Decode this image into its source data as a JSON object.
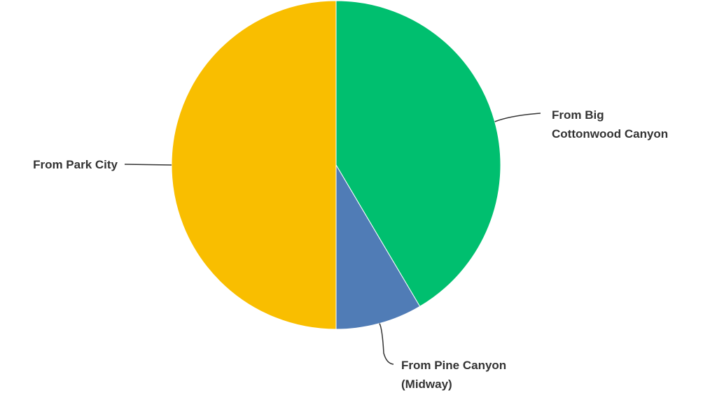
{
  "chart_data": {
    "type": "pie",
    "slices": [
      {
        "label_lines": [
          "From Big",
          "Cottonwood Canyon"
        ],
        "value": 41.5,
        "color": "#00bf6f"
      },
      {
        "label_lines": [
          "From Pine Canyon",
          "(Midway)"
        ],
        "value": 8.5,
        "color": "#507cb6"
      },
      {
        "label_lines": [
          "From Park City"
        ],
        "value": 50.0,
        "color": "#f9be00"
      }
    ]
  }
}
